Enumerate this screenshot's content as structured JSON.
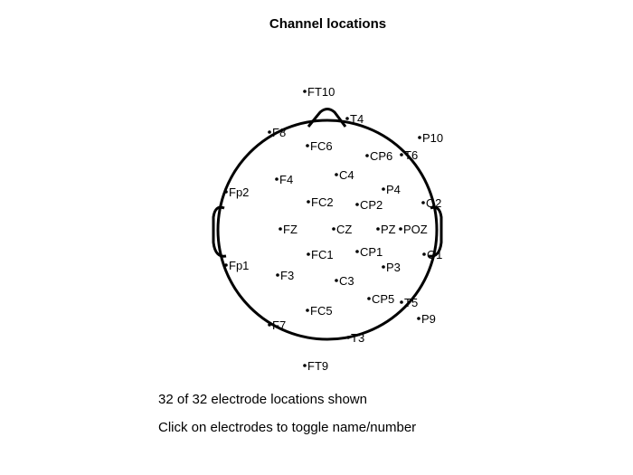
{
  "title": "Channel locations",
  "status": {
    "count_text": "32 of 32 electrode locations shown",
    "hint_text": "Click on electrodes to toggle name/number"
  },
  "colors": {
    "ink": "#000000",
    "background": "#ffffff"
  },
  "electrodes": [
    {
      "label": "FT10"
    },
    {
      "label": "T4"
    },
    {
      "label": "F8"
    },
    {
      "label": "FC6"
    },
    {
      "label": "P10"
    },
    {
      "label": "CP6"
    },
    {
      "label": "T6"
    },
    {
      "label": "C4"
    },
    {
      "label": "F4"
    },
    {
      "label": "P4"
    },
    {
      "label": "Fp2"
    },
    {
      "label": "FC2"
    },
    {
      "label": "CP2"
    },
    {
      "label": "O2"
    },
    {
      "label": "FZ"
    },
    {
      "label": "CZ"
    },
    {
      "label": "PZ"
    },
    {
      "label": "POZ"
    },
    {
      "label": "CP1"
    },
    {
      "label": "FC1"
    },
    {
      "label": "O1"
    },
    {
      "label": "Fp1"
    },
    {
      "label": "P3"
    },
    {
      "label": "F3"
    },
    {
      "label": "C3"
    },
    {
      "label": "CP5"
    },
    {
      "label": "T5"
    },
    {
      "label": "FC5"
    },
    {
      "label": "P9"
    },
    {
      "label": "F7"
    },
    {
      "label": "T3"
    },
    {
      "label": "FT9"
    }
  ]
}
